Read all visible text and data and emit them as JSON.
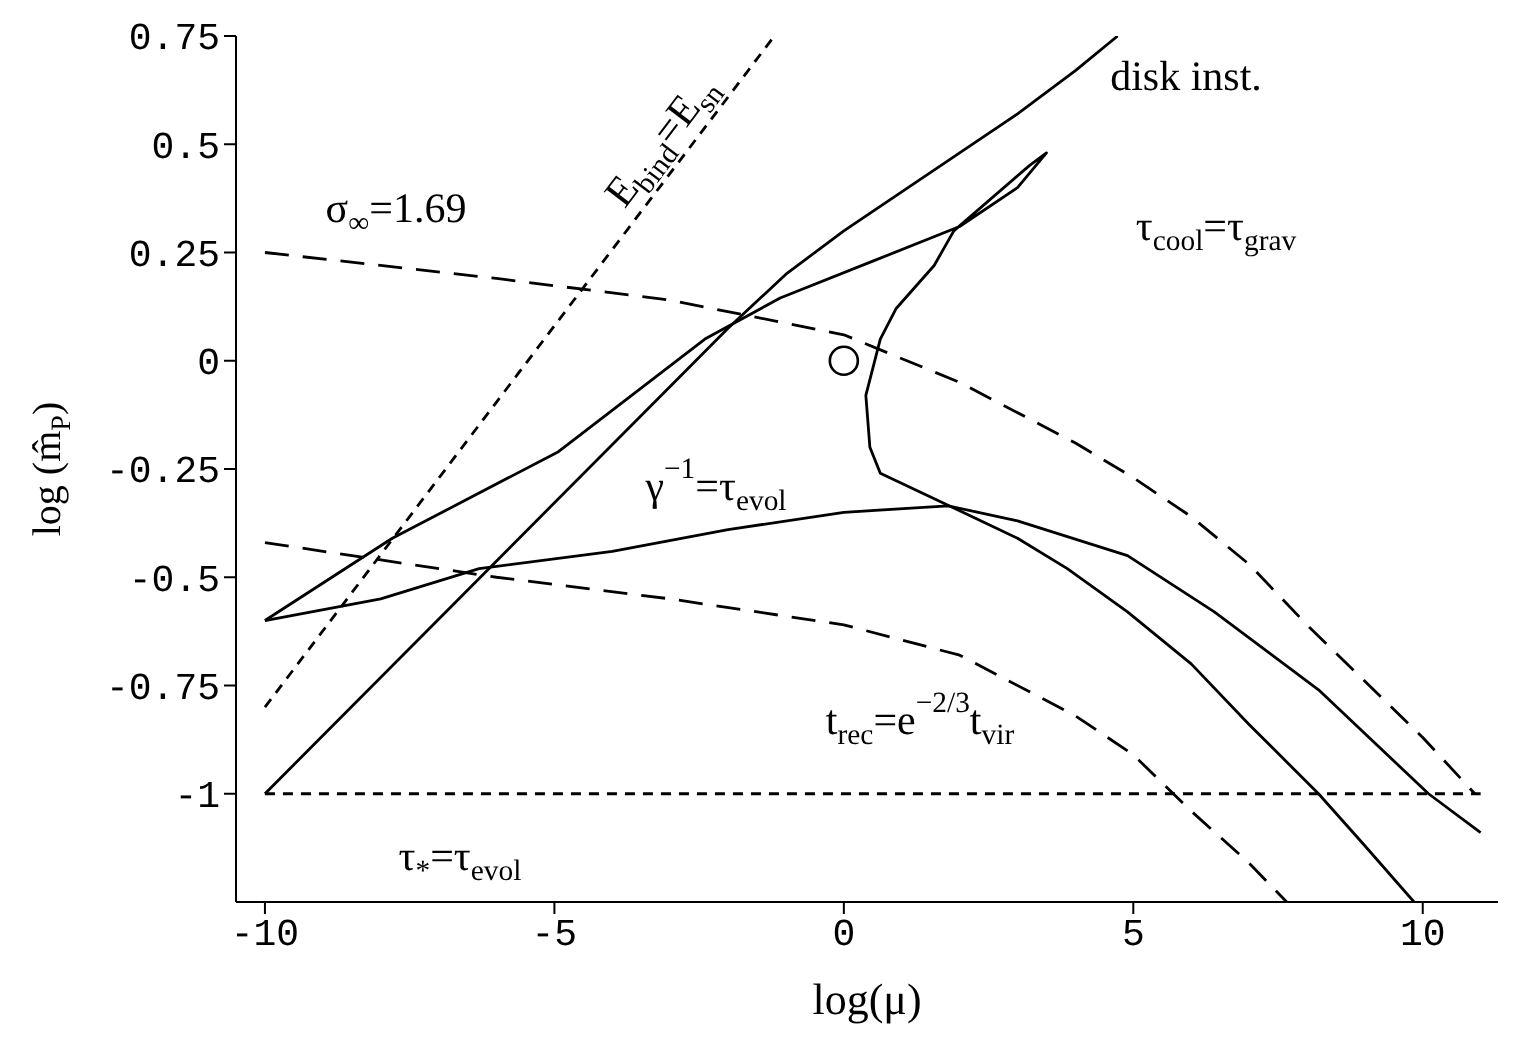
{
  "chart_data": {
    "type": "line",
    "xlabel": "log(μ)",
    "ylabel": "log (m̂$_{P}$)",
    "xlim": [
      -10.5,
      11.3
    ],
    "ylim": [
      -1.25,
      0.75
    ],
    "xticks": [
      -10,
      -5,
      0,
      5,
      10
    ],
    "yticks": [
      -1,
      -0.75,
      -0.5,
      -0.25,
      0,
      0.25,
      0.5,
      0.75
    ],
    "grid": false,
    "legend": false,
    "series": [
      {
        "name": "disk inst.",
        "color": "#000000",
        "line_style": "solid",
        "x": [
          -10,
          -2,
          -1,
          0,
          1,
          2,
          3,
          4,
          4.73
        ],
        "values": [
          -1,
          0.075,
          0.2,
          0.3,
          0.39,
          0.48,
          0.57,
          0.67,
          0.75
        ]
      },
      {
        "name": "τ$_{cool}$=τ$_{grav}$",
        "color": "#000000",
        "line_style": "solid",
        "x": [
          -10,
          -7.8,
          -4.93,
          -2.4,
          -1.1,
          0.5,
          2,
          3,
          3.5,
          3.2,
          1.9,
          1.56,
          0.9,
          0.63,
          0.38,
          0.45,
          0.63,
          1.9,
          3,
          3.86,
          4.9,
          6,
          7,
          8.2,
          9,
          9.85
        ],
        "values": [
          -0.6,
          -0.41,
          -0.21,
          0.05,
          0.145,
          0.23,
          0.31,
          0.4,
          0.48,
          0.45,
          0.3,
          0.22,
          0.12,
          0.05,
          -0.08,
          -0.2,
          -0.26,
          -0.34,
          -0.41,
          -0.48,
          -0.58,
          -0.7,
          -0.84,
          -1,
          -1.12,
          -1.25
        ]
      },
      {
        "name": "γ$^{−1}$=τ$_{evol}$",
        "color": "#000000",
        "line_style": "solid",
        "x": [
          -10,
          -8,
          -6.3,
          -4,
          -2,
          0,
          1.8,
          3,
          4.9,
          6.4,
          8.2,
          10.1,
          11
        ],
        "values": [
          -0.6,
          -0.55,
          -0.48,
          -0.44,
          -0.39,
          -0.35,
          -0.335,
          -0.37,
          -0.45,
          -0.58,
          -0.76,
          -1,
          -1.09
        ]
      },
      {
        "name": "σ$_{∞}$=1.69",
        "color": "#000000",
        "line_style": "dashed",
        "x": [
          -10,
          -6,
          -3,
          0,
          2,
          4,
          5,
          6,
          7,
          8,
          9,
          10,
          10.9
        ],
        "values": [
          0.25,
          0.19,
          0.14,
          0.06,
          -0.05,
          -0.19,
          -0.27,
          -0.36,
          -0.47,
          -0.61,
          -0.74,
          -0.87,
          -1
        ]
      },
      {
        "name": "t$_{rec}$=e$^{−2/3}$t$_{vir}$",
        "color": "#000000",
        "line_style": "dashed",
        "x": [
          -10,
          -6,
          -3,
          0,
          2,
          4,
          5,
          6,
          7,
          7.65
        ],
        "values": [
          -0.42,
          -0.5,
          -0.55,
          -0.61,
          -0.68,
          -0.82,
          -0.91,
          -1.04,
          -1.16,
          -1.25
        ]
      },
      {
        "name": "E$_{bind}$=E$_{sn}$",
        "color": "#000000",
        "line_style": "dotted",
        "x": [
          -10,
          -1.2
        ],
        "values": [
          -0.8,
          0.75
        ]
      },
      {
        "name": "τ$_{*}$=τ$_{evol}$",
        "color": "#000000",
        "line_style": "dotted",
        "x": [
          -10,
          11
        ],
        "values": [
          -1,
          -1
        ]
      },
      {
        "type": "scatter",
        "color": "#000000",
        "marker": "circle",
        "x": [
          0
        ],
        "values": [
          0
        ]
      }
    ]
  }
}
